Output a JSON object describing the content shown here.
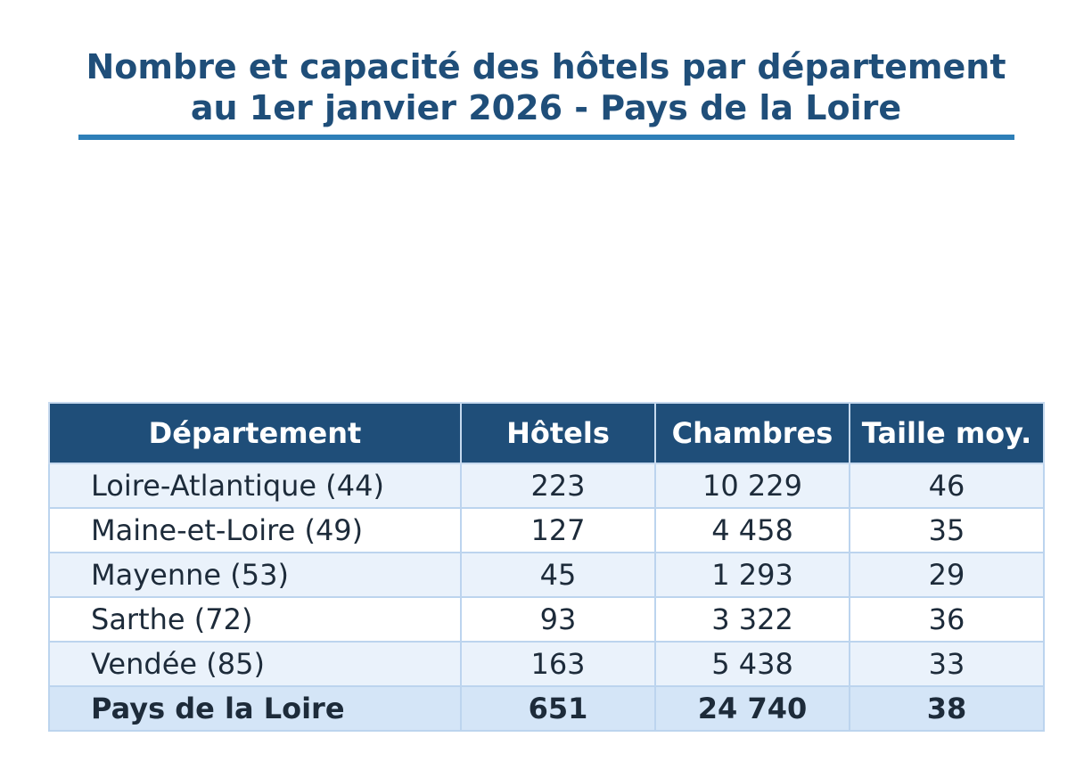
{
  "chart_data": {
    "type": "table",
    "title": "Nombre et capacité des hôtels par département au 1er janvier 2026 - Pays de la Loire",
    "title_lines": [
      "Nombre et capacité des hôtels par département",
      "au 1er janvier 2026 - Pays de la Loire"
    ],
    "columns": [
      "Département",
      "Hôtels",
      "Chambres",
      "Taille moy."
    ],
    "rows": [
      [
        "Loire-Atlantique (44)",
        "223",
        "10 229",
        "46"
      ],
      [
        "Maine-et-Loire (49)",
        "127",
        "4 458",
        "35"
      ],
      [
        "Mayenne (53)",
        "45",
        "1 293",
        "29"
      ],
      [
        "Sarthe (72)",
        "93",
        "3 322",
        "36"
      ],
      [
        "Vendée (85)",
        "163",
        "5 438",
        "33"
      ]
    ],
    "total": [
      "Pays de la Loire",
      "651",
      "24 740",
      "38"
    ]
  },
  "colors": {
    "title": "#1f4e79",
    "rule": "#2e7fb8",
    "header_bg": "#1f4e79",
    "row_alt": "#eaf2fb",
    "total_bg": "#d4e5f7"
  }
}
